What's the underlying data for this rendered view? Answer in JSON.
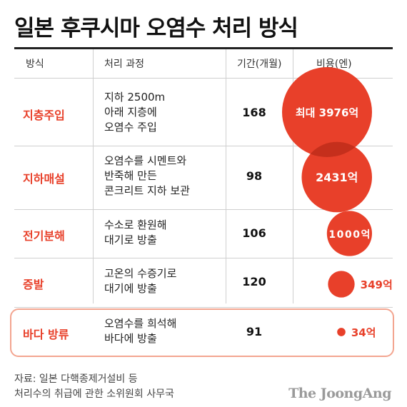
{
  "title": "일본 후쿠시마 오염수 처리 방식",
  "headers": {
    "method": "방식",
    "process": "처리 과정",
    "period": "기간(개월)",
    "cost": "비용(엔)"
  },
  "rows": [
    {
      "method": "지층주입",
      "process": [
        "지하 2500m",
        "아래 지층에",
        "오염수 주입"
      ],
      "period": "168",
      "cost_label": "최대 3976억"
    },
    {
      "method": "지하매설",
      "process": [
        "오염수를 시멘트와",
        "반죽해 만든",
        "콘크리트 지하 보관"
      ],
      "period": "98",
      "cost_label": "2431억"
    },
    {
      "method": "전기분해",
      "process": [
        "수소로 환원해",
        "대기로 방출"
      ],
      "period": "106",
      "cost_label": "1000억"
    },
    {
      "method": "증발",
      "process": [
        "고온의 수증기로",
        "대기에 방출"
      ],
      "period": "120",
      "cost_label": "349억"
    },
    {
      "method": "바다 방류",
      "process": [
        "오염수를 희석해",
        "바다에 방출"
      ],
      "period": "91",
      "cost_label": "34억"
    }
  ],
  "chart_data": {
    "type": "bubble",
    "categories": [
      "지층주입",
      "지하매설",
      "전기분해",
      "증발",
      "바다 방류"
    ],
    "series": [
      {
        "values": [
          3976,
          2431,
          1000,
          349,
          34
        ]
      }
    ],
    "unit": "억 엔",
    "colors": {
      "bubble": "#e8402a",
      "bubble_overlap": "#c52f1c",
      "highlight": "#f3a590"
    }
  },
  "footer": {
    "source_line1": "자료: 일본 다핵종제거설비 등",
    "source_line2": "처리수의 취급에 관한 소위원회 사무국",
    "brand": "The JoongAng"
  }
}
